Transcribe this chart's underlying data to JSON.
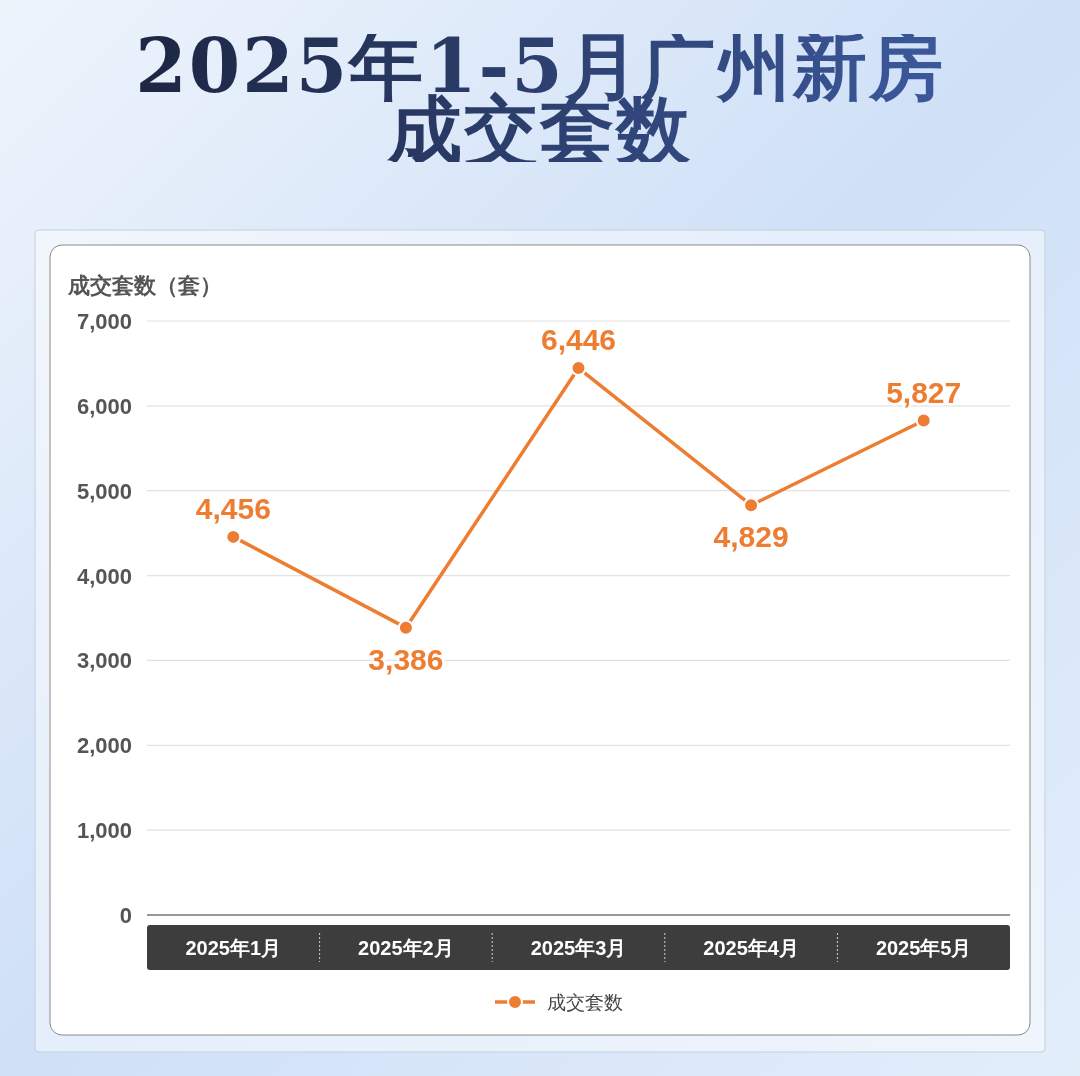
{
  "chart_data": {
    "type": "line",
    "title": "2025年1-5月广州新房成交套数",
    "ylabel": "成交套数（套）",
    "categories": [
      "2025年1月",
      "2025年2月",
      "2025年3月",
      "2025年4月",
      "2025年5月"
    ],
    "series": [
      {
        "name": "成交套数",
        "color": "#ed7d31",
        "values": [
          4456,
          3386,
          6446,
          4829,
          5827
        ],
        "value_labels": [
          "4,456",
          "3,386",
          "6,446",
          "4,829",
          "5,827"
        ]
      }
    ],
    "ylim": [
      0,
      7000
    ],
    "yticks": [
      0,
      {
        "value": 1000,
        "label": "1,000"
      },
      {
        "value": 2000,
        "label": "2,000"
      },
      {
        "value": 3000,
        "label": "3,000"
      },
      {
        "value": 4000,
        "label": "4,000"
      },
      {
        "value": 5000,
        "label": "5,000"
      },
      {
        "value": 6000,
        "label": "6,000"
      },
      {
        "value": 7000,
        "label": "7,000"
      }
    ],
    "grid": "y",
    "legend": "bottom",
    "marker": "circle",
    "line_style": "solid"
  }
}
